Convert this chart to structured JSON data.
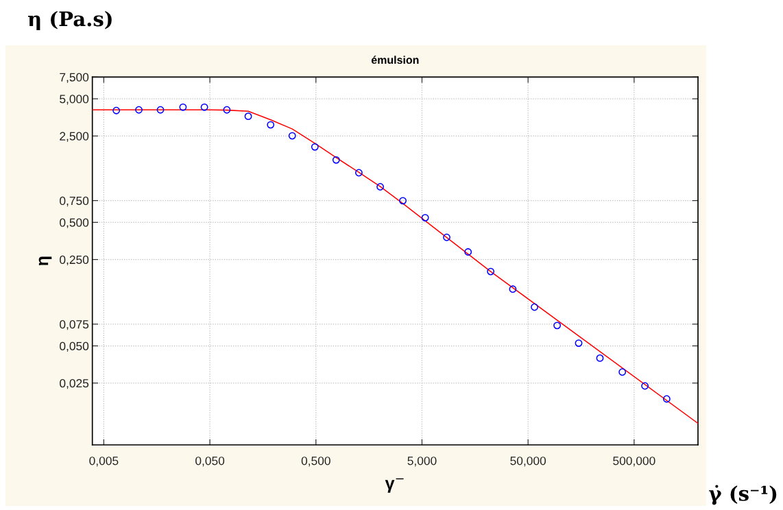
{
  "chart_data": {
    "type": "scatter",
    "title": "émulsion",
    "xlabel": "γ$^{−}$",
    "ylabel": "η",
    "annotations": [
      "η (Pa.s)",
      "γ̇ (s⁻¹)"
    ],
    "log": "xy",
    "grid": true,
    "legend": false,
    "xlim": [
      0.0039,
      2000
    ],
    "ylim": [
      0.0079,
      7.5
    ],
    "xticks": [
      {
        "value": 0.005,
        "label": "0,005"
      },
      {
        "value": 0.05,
        "label": "0,050"
      },
      {
        "value": 0.5,
        "label": "0,500"
      },
      {
        "value": 5,
        "label": "5,000"
      },
      {
        "value": 50,
        "label": "50,000"
      },
      {
        "value": 500,
        "label": "500,000"
      }
    ],
    "yticks": [
      {
        "value": 0.025,
        "label": "0,025"
      },
      {
        "value": 0.05,
        "label": "0,050"
      },
      {
        "value": 0.075,
        "label": "0,075"
      },
      {
        "value": 0.25,
        "label": "0,250"
      },
      {
        "value": 0.5,
        "label": "0,500"
      },
      {
        "value": 0.75,
        "label": "0,750"
      },
      {
        "value": 2.5,
        "label": "2,500"
      },
      {
        "value": 5,
        "label": "5,000"
      },
      {
        "value": 7.5,
        "label": "7,500"
      }
    ],
    "series": [
      {
        "marker": "circle",
        "color": "#0000ff",
        "x": [
          0.00656,
          0.0107,
          0.0171,
          0.0279,
          0.0444,
          0.0723,
          0.115,
          0.187,
          0.299,
          0.489,
          0.776,
          1.27,
          2.02,
          3.3,
          5.36,
          8.55,
          13.6,
          22.2,
          35.9,
          57.5,
          94.0,
          150,
          238,
          387,
          632,
          1014
        ],
        "values": [
          4.02,
          4.07,
          4.07,
          4.28,
          4.28,
          4.07,
          3.61,
          3.08,
          2.51,
          2.04,
          1.6,
          1.26,
          0.97,
          0.748,
          0.545,
          0.378,
          0.288,
          0.2,
          0.144,
          0.103,
          0.0731,
          0.0526,
          0.0398,
          0.0307,
          0.0237,
          0.0186
        ]
      },
      {
        "type": "line",
        "marker": "none",
        "line_style": "solid",
        "color": "#ff0000",
        "x": [
          0.0039,
          0.05,
          0.072,
          0.115,
          0.187,
          0.299,
          0.489,
          0.776,
          1.27,
          2.02,
          3.3,
          22.2,
          2000
        ],
        "values": [
          4.07,
          4.07,
          4.05,
          3.97,
          3.38,
          2.85,
          2.18,
          1.67,
          1.27,
          0.975,
          0.71,
          0.2,
          0.0118
        ]
      }
    ]
  }
}
